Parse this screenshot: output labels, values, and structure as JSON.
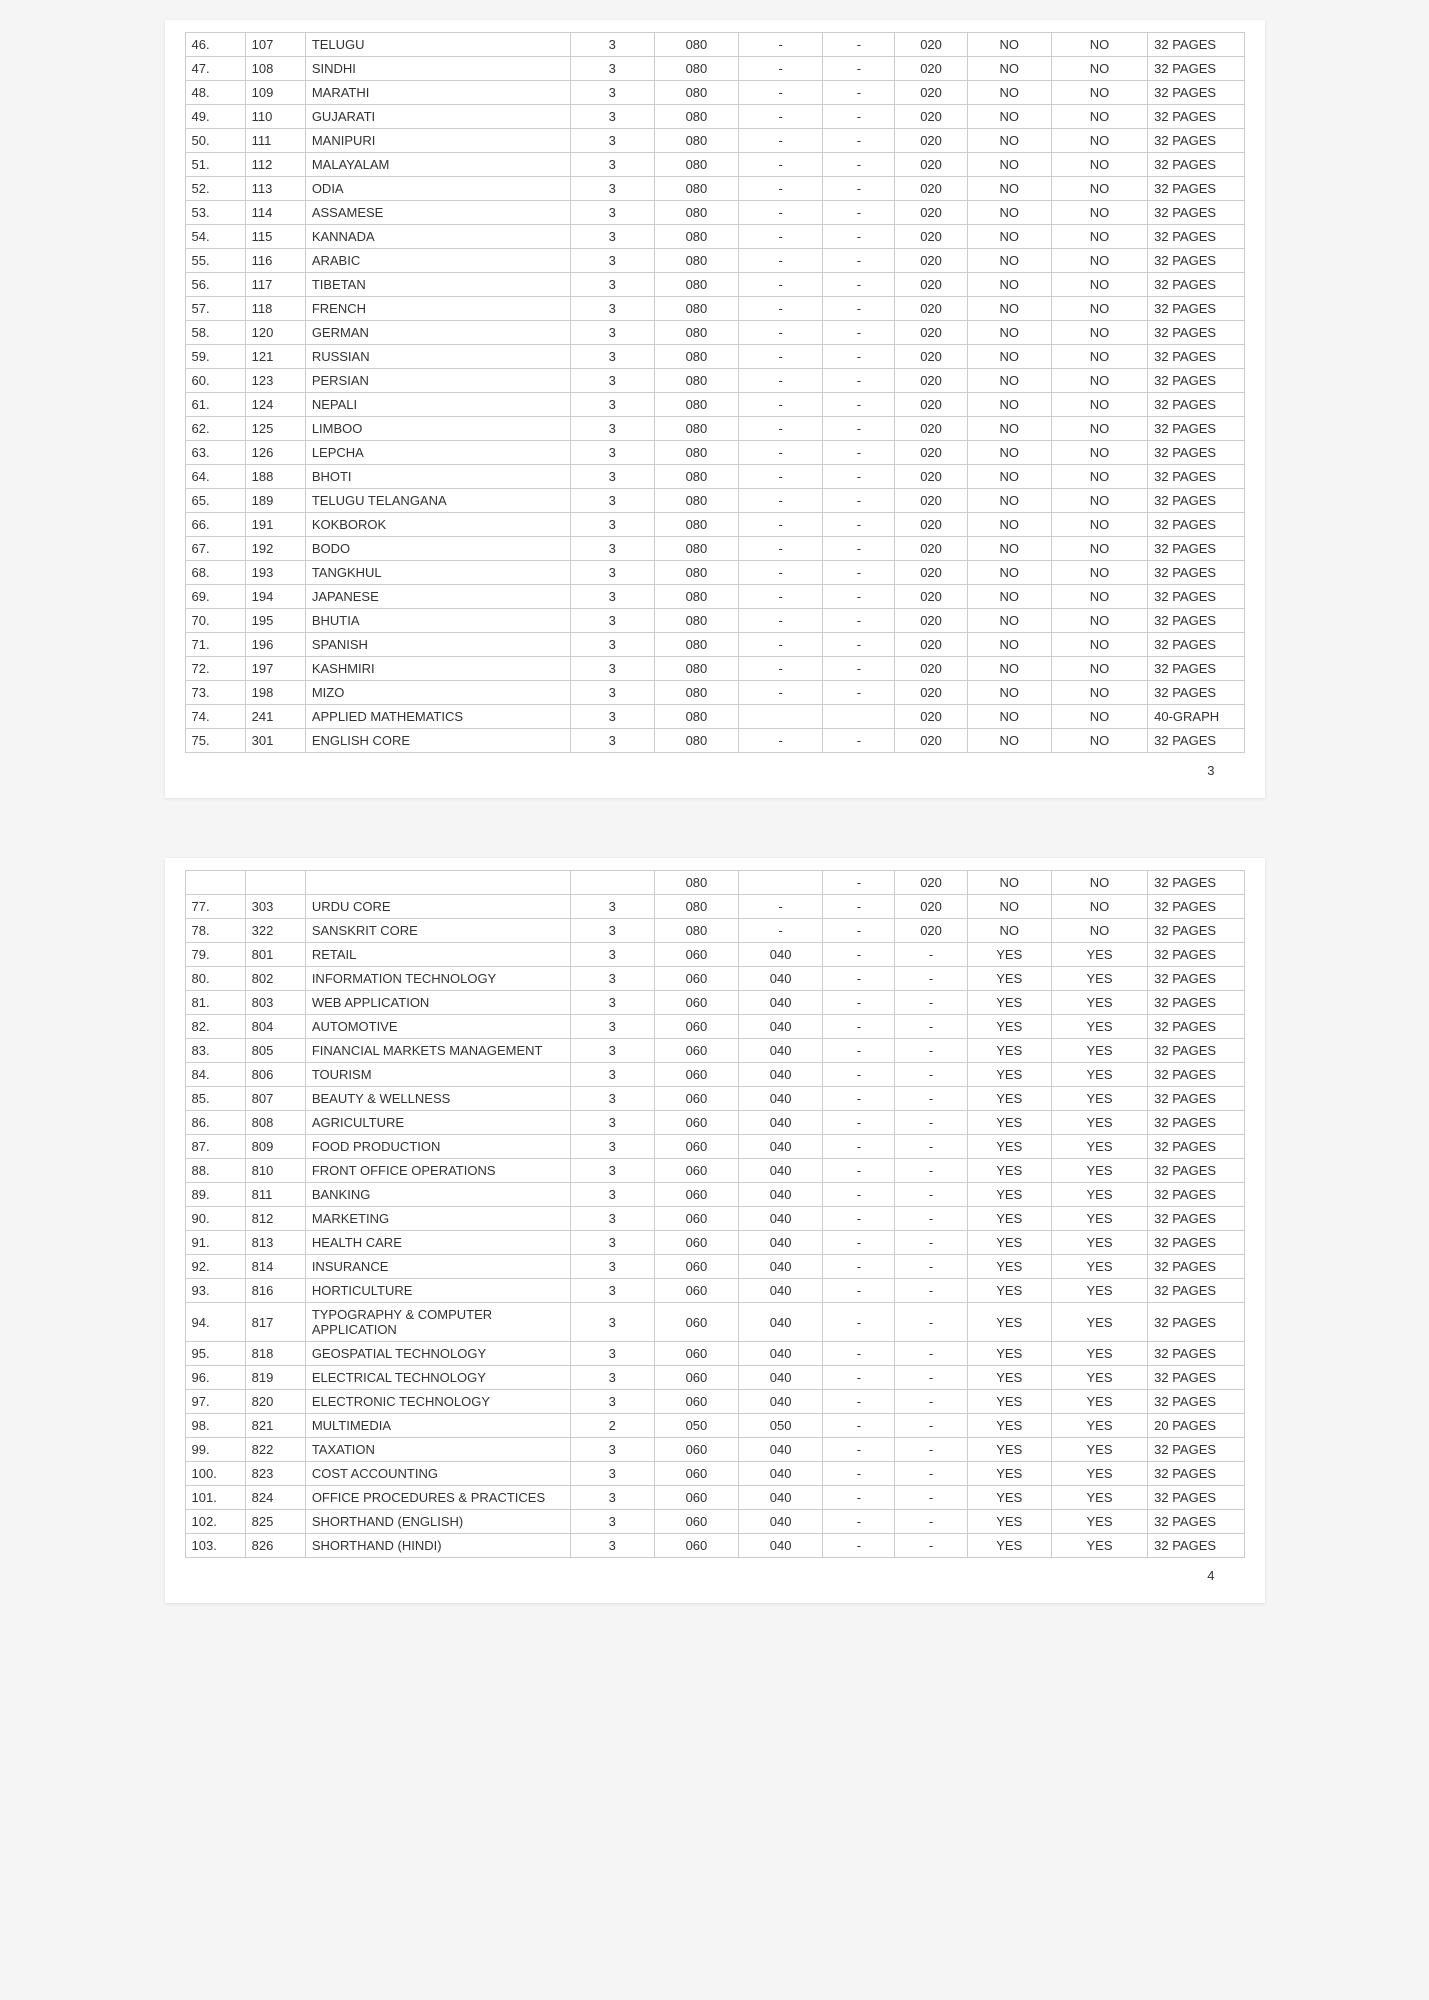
{
  "page1": {
    "page_number": "3",
    "rows": [
      {
        "sr": "46.",
        "code": "107",
        "name": "TELUGU",
        "c3": "3",
        "c4": "080",
        "c5": "-",
        "c6": "-",
        "c7": "020",
        "c8": "NO",
        "c9": "NO",
        "c10": "32 PAGES"
      },
      {
        "sr": "47.",
        "code": "108",
        "name": "SINDHI",
        "c3": "3",
        "c4": "080",
        "c5": "-",
        "c6": "-",
        "c7": "020",
        "c8": "NO",
        "c9": "NO",
        "c10": "32 PAGES"
      },
      {
        "sr": "48.",
        "code": "109",
        "name": "MARATHI",
        "c3": "3",
        "c4": "080",
        "c5": "-",
        "c6": "-",
        "c7": "020",
        "c8": "NO",
        "c9": "NO",
        "c10": "32 PAGES"
      },
      {
        "sr": "49.",
        "code": "110",
        "name": "GUJARATI",
        "c3": "3",
        "c4": "080",
        "c5": "-",
        "c6": "-",
        "c7": "020",
        "c8": "NO",
        "c9": "NO",
        "c10": "32 PAGES"
      },
      {
        "sr": "50.",
        "code": "111",
        "name": "MANIPURI",
        "c3": "3",
        "c4": "080",
        "c5": "-",
        "c6": "-",
        "c7": "020",
        "c8": "NO",
        "c9": "NO",
        "c10": "32 PAGES"
      },
      {
        "sr": "51.",
        "code": "112",
        "name": "MALAYALAM",
        "c3": "3",
        "c4": "080",
        "c5": "-",
        "c6": "-",
        "c7": "020",
        "c8": "NO",
        "c9": "NO",
        "c10": "32 PAGES"
      },
      {
        "sr": "52.",
        "code": "113",
        "name": "ODIA",
        "c3": "3",
        "c4": "080",
        "c5": "-",
        "c6": "-",
        "c7": "020",
        "c8": "NO",
        "c9": "NO",
        "c10": "32 PAGES"
      },
      {
        "sr": "53.",
        "code": "114",
        "name": "ASSAMESE",
        "c3": "3",
        "c4": "080",
        "c5": "-",
        "c6": "-",
        "c7": "020",
        "c8": "NO",
        "c9": "NO",
        "c10": "32 PAGES"
      },
      {
        "sr": "54.",
        "code": "115",
        "name": "KANNADA",
        "c3": "3",
        "c4": "080",
        "c5": "-",
        "c6": "-",
        "c7": "020",
        "c8": "NO",
        "c9": "NO",
        "c10": "32 PAGES"
      },
      {
        "sr": "55.",
        "code": "116",
        "name": "ARABIC",
        "c3": "3",
        "c4": "080",
        "c5": "-",
        "c6": "-",
        "c7": "020",
        "c8": "NO",
        "c9": "NO",
        "c10": "32 PAGES"
      },
      {
        "sr": "56.",
        "code": "117",
        "name": "TIBETAN",
        "c3": "3",
        "c4": "080",
        "c5": "-",
        "c6": "-",
        "c7": "020",
        "c8": "NO",
        "c9": "NO",
        "c10": "32 PAGES"
      },
      {
        "sr": "57.",
        "code": "118",
        "name": "FRENCH",
        "c3": "3",
        "c4": "080",
        "c5": "-",
        "c6": "-",
        "c7": "020",
        "c8": "NO",
        "c9": "NO",
        "c10": "32 PAGES"
      },
      {
        "sr": "58.",
        "code": "120",
        "name": "GERMAN",
        "c3": "3",
        "c4": "080",
        "c5": "-",
        "c6": "-",
        "c7": "020",
        "c8": "NO",
        "c9": "NO",
        "c10": "32 PAGES"
      },
      {
        "sr": "59.",
        "code": "121",
        "name": "RUSSIAN",
        "c3": "3",
        "c4": "080",
        "c5": "-",
        "c6": "-",
        "c7": "020",
        "c8": "NO",
        "c9": "NO",
        "c10": "32 PAGES"
      },
      {
        "sr": "60.",
        "code": "123",
        "name": "PERSIAN",
        "c3": "3",
        "c4": "080",
        "c5": "-",
        "c6": "-",
        "c7": "020",
        "c8": "NO",
        "c9": "NO",
        "c10": "32 PAGES"
      },
      {
        "sr": "61.",
        "code": "124",
        "name": "NEPALI",
        "c3": "3",
        "c4": "080",
        "c5": "-",
        "c6": "-",
        "c7": "020",
        "c8": "NO",
        "c9": "NO",
        "c10": "32 PAGES"
      },
      {
        "sr": "62.",
        "code": "125",
        "name": "LIMBOO",
        "c3": "3",
        "c4": "080",
        "c5": "-",
        "c6": "-",
        "c7": "020",
        "c8": "NO",
        "c9": "NO",
        "c10": "32 PAGES"
      },
      {
        "sr": "63.",
        "code": "126",
        "name": "LEPCHA",
        "c3": "3",
        "c4": "080",
        "c5": "-",
        "c6": "-",
        "c7": "020",
        "c8": "NO",
        "c9": "NO",
        "c10": "32 PAGES"
      },
      {
        "sr": "64.",
        "code": "188",
        "name": "BHOTI",
        "c3": "3",
        "c4": "080",
        "c5": "-",
        "c6": "-",
        "c7": "020",
        "c8": "NO",
        "c9": "NO",
        "c10": "32 PAGES"
      },
      {
        "sr": "65.",
        "code": "189",
        "name": "TELUGU TELANGANA",
        "c3": "3",
        "c4": "080",
        "c5": "-",
        "c6": "-",
        "c7": "020",
        "c8": "NO",
        "c9": "NO",
        "c10": "32 PAGES"
      },
      {
        "sr": "66.",
        "code": "191",
        "name": "KOKBOROK",
        "c3": "3",
        "c4": "080",
        "c5": "-",
        "c6": "-",
        "c7": "020",
        "c8": "NO",
        "c9": "NO",
        "c10": "32 PAGES"
      },
      {
        "sr": "67.",
        "code": "192",
        "name": "BODO",
        "c3": "3",
        "c4": "080",
        "c5": "-",
        "c6": "-",
        "c7": "020",
        "c8": "NO",
        "c9": "NO",
        "c10": "32 PAGES"
      },
      {
        "sr": "68.",
        "code": "193",
        "name": "TANGKHUL",
        "c3": "3",
        "c4": "080",
        "c5": "-",
        "c6": "-",
        "c7": "020",
        "c8": "NO",
        "c9": "NO",
        "c10": "32 PAGES"
      },
      {
        "sr": "69.",
        "code": "194",
        "name": "JAPANESE",
        "c3": "3",
        "c4": "080",
        "c5": "-",
        "c6": "-",
        "c7": "020",
        "c8": "NO",
        "c9": "NO",
        "c10": "32 PAGES"
      },
      {
        "sr": "70.",
        "code": "195",
        "name": "BHUTIA",
        "c3": "3",
        "c4": "080",
        "c5": "-",
        "c6": "-",
        "c7": "020",
        "c8": "NO",
        "c9": "NO",
        "c10": "32 PAGES"
      },
      {
        "sr": "71.",
        "code": "196",
        "name": "SPANISH",
        "c3": "3",
        "c4": "080",
        "c5": "-",
        "c6": "-",
        "c7": "020",
        "c8": "NO",
        "c9": "NO",
        "c10": "32 PAGES"
      },
      {
        "sr": "72.",
        "code": "197",
        "name": "KASHMIRI",
        "c3": "3",
        "c4": "080",
        "c5": "-",
        "c6": "-",
        "c7": "020",
        "c8": "NO",
        "c9": "NO",
        "c10": "32 PAGES"
      },
      {
        "sr": "73.",
        "code": "198",
        "name": "MIZO",
        "c3": "3",
        "c4": "080",
        "c5": "-",
        "c6": "-",
        "c7": "020",
        "c8": "NO",
        "c9": "NO",
        "c10": "32 PAGES"
      },
      {
        "sr": "74.",
        "code": "241",
        "name": "APPLIED MATHEMATICS",
        "c3": "3",
        "c4": "080",
        "c5": "",
        "c6": "",
        "c7": "020",
        "c8": "NO",
        "c9": "NO",
        "c10": "40-GRAPH"
      },
      {
        "sr": "75.",
        "code": "301",
        "name": "ENGLISH CORE",
        "c3": "3",
        "c4": "080",
        "c5": "-",
        "c6": "-",
        "c7": "020",
        "c8": "NO",
        "c9": "NO",
        "c10": "32 PAGES"
      }
    ]
  },
  "page2": {
    "page_number": "4",
    "rows": [
      {
        "sr": "",
        "code": "",
        "name": "",
        "c3": "",
        "c4": "080",
        "c5": "",
        "c6": "-",
        "c7": "020",
        "c8": "NO",
        "c9": "NO",
        "c10": "32 PAGES"
      },
      {
        "sr": "77.",
        "code": "303",
        "name": "URDU CORE",
        "c3": "3",
        "c4": "080",
        "c5": "-",
        "c6": "-",
        "c7": "020",
        "c8": "NO",
        "c9": "NO",
        "c10": "32 PAGES"
      },
      {
        "sr": "78.",
        "code": "322",
        "name": "SANSKRIT CORE",
        "c3": "3",
        "c4": "080",
        "c5": "-",
        "c6": "-",
        "c7": "020",
        "c8": "NO",
        "c9": "NO",
        "c10": "32 PAGES"
      },
      {
        "sr": "79.",
        "code": "801",
        "name": "RETAIL",
        "c3": "3",
        "c4": "060",
        "c5": "040",
        "c6": "-",
        "c7": "-",
        "c8": "YES",
        "c9": "YES",
        "c10": "32 PAGES"
      },
      {
        "sr": "80.",
        "code": "802",
        "name": "INFORMATION TECHNOLOGY",
        "c3": "3",
        "c4": "060",
        "c5": "040",
        "c6": "-",
        "c7": "-",
        "c8": "YES",
        "c9": "YES",
        "c10": "32 PAGES"
      },
      {
        "sr": "81.",
        "code": "803",
        "name": "WEB APPLICATION",
        "c3": "3",
        "c4": "060",
        "c5": "040",
        "c6": "-",
        "c7": "-",
        "c8": "YES",
        "c9": "YES",
        "c10": "32 PAGES"
      },
      {
        "sr": "82.",
        "code": "804",
        "name": "AUTOMOTIVE",
        "c3": "3",
        "c4": "060",
        "c5": "040",
        "c6": "-",
        "c7": "-",
        "c8": "YES",
        "c9": "YES",
        "c10": "32 PAGES"
      },
      {
        "sr": "83.",
        "code": "805",
        "name": "FINANCIAL MARKETS MANAGEMENT",
        "c3": "3",
        "c4": "060",
        "c5": "040",
        "c6": "-",
        "c7": "-",
        "c8": "YES",
        "c9": "YES",
        "c10": "32 PAGES"
      },
      {
        "sr": "84.",
        "code": "806",
        "name": "TOURISM",
        "c3": "3",
        "c4": "060",
        "c5": "040",
        "c6": "-",
        "c7": "-",
        "c8": "YES",
        "c9": "YES",
        "c10": "32 PAGES"
      },
      {
        "sr": "85.",
        "code": "807",
        "name": "BEAUTY & WELLNESS",
        "c3": "3",
        "c4": "060",
        "c5": "040",
        "c6": "-",
        "c7": "-",
        "c8": "YES",
        "c9": "YES",
        "c10": "32 PAGES"
      },
      {
        "sr": "86.",
        "code": "808",
        "name": "AGRICULTURE",
        "c3": "3",
        "c4": "060",
        "c5": "040",
        "c6": "-",
        "c7": "-",
        "c8": "YES",
        "c9": "YES",
        "c10": "32 PAGES"
      },
      {
        "sr": "87.",
        "code": "809",
        "name": "FOOD PRODUCTION",
        "c3": "3",
        "c4": "060",
        "c5": "040",
        "c6": "-",
        "c7": "-",
        "c8": "YES",
        "c9": "YES",
        "c10": "32 PAGES"
      },
      {
        "sr": "88.",
        "code": "810",
        "name": "FRONT OFFICE OPERATIONS",
        "c3": "3",
        "c4": "060",
        "c5": "040",
        "c6": "-",
        "c7": "-",
        "c8": "YES",
        "c9": "YES",
        "c10": "32 PAGES"
      },
      {
        "sr": "89.",
        "code": "811",
        "name": "BANKING",
        "c3": "3",
        "c4": "060",
        "c5": "040",
        "c6": "-",
        "c7": "-",
        "c8": "YES",
        "c9": "YES",
        "c10": "32 PAGES"
      },
      {
        "sr": "90.",
        "code": "812",
        "name": "MARKETING",
        "c3": "3",
        "c4": "060",
        "c5": "040",
        "c6": "-",
        "c7": "-",
        "c8": "YES",
        "c9": "YES",
        "c10": "32 PAGES"
      },
      {
        "sr": "91.",
        "code": "813",
        "name": "HEALTH CARE",
        "c3": "3",
        "c4": "060",
        "c5": "040",
        "c6": "-",
        "c7": "-",
        "c8": "YES",
        "c9": "YES",
        "c10": "32 PAGES"
      },
      {
        "sr": "92.",
        "code": "814",
        "name": "INSURANCE",
        "c3": "3",
        "c4": "060",
        "c5": "040",
        "c6": "-",
        "c7": "-",
        "c8": "YES",
        "c9": "YES",
        "c10": "32 PAGES"
      },
      {
        "sr": "93.",
        "code": "816",
        "name": "HORTICULTURE",
        "c3": "3",
        "c4": "060",
        "c5": "040",
        "c6": "-",
        "c7": "-",
        "c8": "YES",
        "c9": "YES",
        "c10": "32 PAGES"
      },
      {
        "sr": "94.",
        "code": "817",
        "name": "TYPOGRAPHY & COMPUTER APPLICATION",
        "c3": "3",
        "c4": "060",
        "c5": "040",
        "c6": "-",
        "c7": "-",
        "c8": "YES",
        "c9": "YES",
        "c10": "32 PAGES"
      },
      {
        "sr": "95.",
        "code": "818",
        "name": "GEOSPATIAL TECHNOLOGY",
        "c3": "3",
        "c4": "060",
        "c5": "040",
        "c6": "-",
        "c7": "-",
        "c8": "YES",
        "c9": "YES",
        "c10": "32 PAGES"
      },
      {
        "sr": "96.",
        "code": "819",
        "name": "ELECTRICAL TECHNOLOGY",
        "c3": "3",
        "c4": "060",
        "c5": "040",
        "c6": "-",
        "c7": "-",
        "c8": "YES",
        "c9": "YES",
        "c10": "32 PAGES"
      },
      {
        "sr": "97.",
        "code": "820",
        "name": "ELECTRONIC TECHNOLOGY",
        "c3": "3",
        "c4": "060",
        "c5": "040",
        "c6": "-",
        "c7": "-",
        "c8": "YES",
        "c9": "YES",
        "c10": "32 PAGES"
      },
      {
        "sr": "98.",
        "code": "821",
        "name": "MULTIMEDIA",
        "c3": "2",
        "c4": "050",
        "c5": "050",
        "c6": "-",
        "c7": "-",
        "c8": "YES",
        "c9": "YES",
        "c10": "20 PAGES"
      },
      {
        "sr": "99.",
        "code": "822",
        "name": "TAXATION",
        "c3": "3",
        "c4": "060",
        "c5": "040",
        "c6": "-",
        "c7": "-",
        "c8": "YES",
        "c9": "YES",
        "c10": "32 PAGES"
      },
      {
        "sr": "100.",
        "code": "823",
        "name": "COST ACCOUNTING",
        "c3": "3",
        "c4": "060",
        "c5": "040",
        "c6": "-",
        "c7": "-",
        "c8": "YES",
        "c9": "YES",
        "c10": "32 PAGES"
      },
      {
        "sr": "101.",
        "code": "824",
        "name": "OFFICE PROCEDURES & PRACTICES",
        "c3": "3",
        "c4": "060",
        "c5": "040",
        "c6": "-",
        "c7": "-",
        "c8": "YES",
        "c9": "YES",
        "c10": "32 PAGES"
      },
      {
        "sr": "102.",
        "code": "825",
        "name": "SHORTHAND (ENGLISH)",
        "c3": "3",
        "c4": "060",
        "c5": "040",
        "c6": "-",
        "c7": "-",
        "c8": "YES",
        "c9": "YES",
        "c10": "32 PAGES"
      },
      {
        "sr": "103.",
        "code": "826",
        "name": "SHORTHAND (HINDI)",
        "c3": "3",
        "c4": "060",
        "c5": "040",
        "c6": "-",
        "c7": "-",
        "c8": "YES",
        "c9": "YES",
        "c10": "32 PAGES"
      }
    ]
  },
  "style": {
    "border_color": "#cccccc",
    "text_color": "#333333",
    "background": "#ffffff",
    "font_size": 13
  }
}
